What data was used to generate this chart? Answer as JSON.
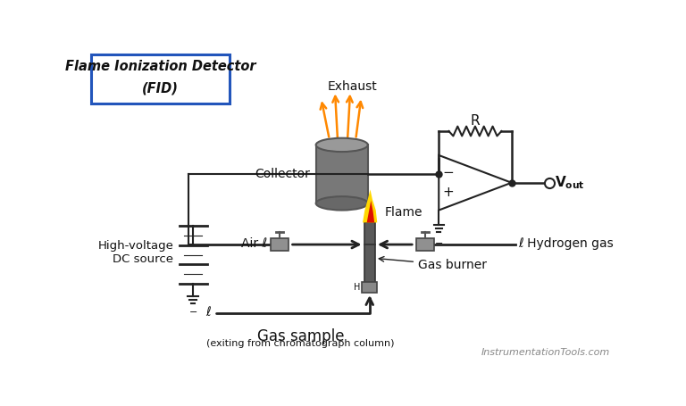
{
  "title_line1": "Flame Ionization Detector",
  "title_line2": "(FID)",
  "title_box_color": "#2255bb",
  "bg_color": "#ffffff",
  "text_color": "#111111",
  "orange_color": "#ff8800",
  "label_exhaust": "Exhaust",
  "label_collector": "Collector",
  "label_flame": "Flame",
  "label_R": "R",
  "label_hvdc": "High-voltage\nDC source",
  "label_air": "Air",
  "label_h2": "Hydrogen gas",
  "label_gas_burner": "Gas burner",
  "label_gas_sample": "Gas sample",
  "label_gas_sub": "(exiting from chromatograph column)",
  "label_website": "InstrumentationTools.com",
  "collector_gray": "#787878",
  "collector_dark": "#555555",
  "collector_light": "#999999",
  "burner_color": "#5a5a5a",
  "valve_color": "#909090",
  "line_color": "#222222",
  "ground_color": "#222222"
}
